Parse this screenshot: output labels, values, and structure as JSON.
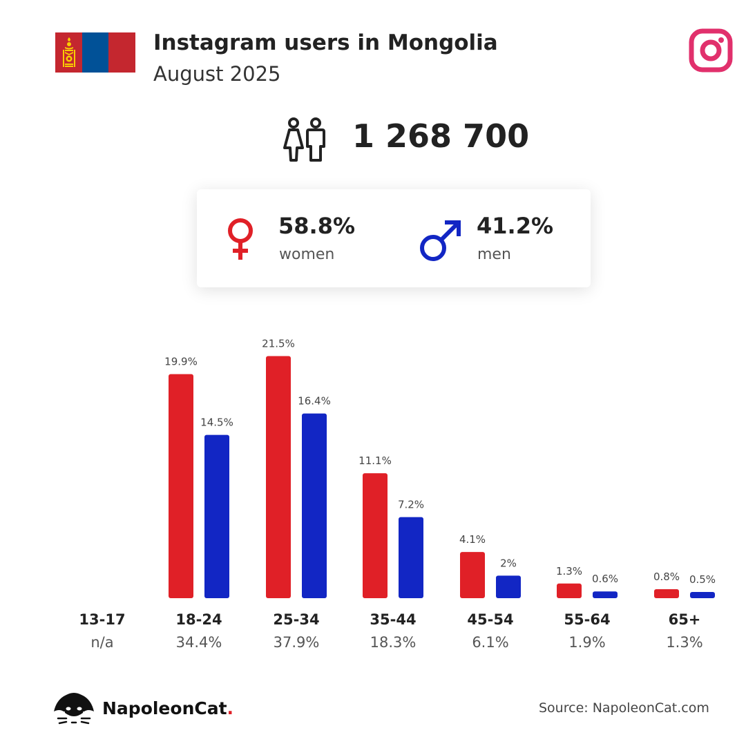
{
  "header": {
    "title": "Instagram users in Mongolia",
    "subtitle": "August 2025",
    "flag_colors": [
      "#c4272f",
      "#015197",
      "#c4272f"
    ],
    "flag_emblem_color": "#f9cf02",
    "platform_icon": "instagram-icon",
    "platform_color": "#e1306c"
  },
  "total": {
    "icon": "people-icon",
    "value": "1 268 700"
  },
  "gender": {
    "women": {
      "icon": "female-symbol-icon",
      "percent": "58.8%",
      "label": "women",
      "color": "#e02027"
    },
    "men": {
      "icon": "male-symbol-icon",
      "percent": "41.2%",
      "label": "men",
      "color": "#1226c4"
    }
  },
  "chart_data": {
    "type": "bar",
    "categories": [
      "13-17",
      "18-24",
      "25-34",
      "35-44",
      "45-54",
      "55-64",
      "65+"
    ],
    "category_totals": [
      "n/a",
      "34.4%",
      "37.9%",
      "18.3%",
      "6.1%",
      "1.9%",
      "1.3%"
    ],
    "series": [
      {
        "name": "women",
        "color": "#e02027",
        "values": [
          null,
          19.9,
          21.5,
          11.1,
          4.1,
          1.3,
          0.8
        ],
        "labels": [
          "",
          "19.9%",
          "21.5%",
          "11.1%",
          "4.1%",
          "1.3%",
          "0.8%"
        ]
      },
      {
        "name": "men",
        "color": "#1226c4",
        "values": [
          null,
          14.5,
          16.4,
          7.2,
          2.0,
          0.6,
          0.5
        ],
        "labels": [
          "",
          "14.5%",
          "16.4%",
          "7.2%",
          "2%",
          "0.6%",
          "0.5%"
        ]
      }
    ],
    "legend": "none",
    "grid": false
  },
  "footer": {
    "brand": "NapoleonCat",
    "brand_dot": ".",
    "brand_icon": "napoleoncat-logo-icon",
    "source": "Source: NapoleonCat.com"
  }
}
